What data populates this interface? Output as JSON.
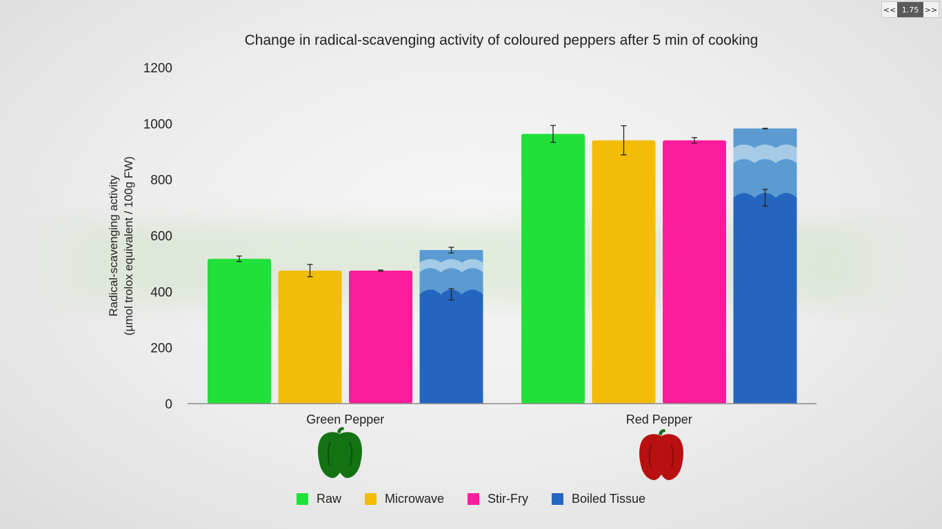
{
  "player": {
    "prev_label": "<<",
    "speed": "1.75",
    "next_label": ">>"
  },
  "colors": {
    "Raw": "#22e03a",
    "Microwave": "#f2bc07",
    "Stir-Fry": "#fc1c9c",
    "Boiled Tissue": "#2466bf",
    "Boiled Tissue wave light": "#a5cbe6",
    "Boiled Tissue wave mid": "#5b9bd2",
    "green pepper icon": "#137313",
    "red pepper icon": "#b80f0f"
  },
  "chart_data": {
    "type": "bar",
    "title": "Change in radical-scavenging activity of coloured peppers after 5 min of cooking",
    "ylabel": "Radical-scavenging activity",
    "ylabel_units": "(µmol trolox equivalent / 100g FW)",
    "xlabel": "",
    "ylim": [
      0,
      1200
    ],
    "yticks": [
      0,
      200,
      400,
      600,
      800,
      1000,
      1200
    ],
    "grid": false,
    "legend_position": "bottom",
    "categories": [
      "Green Pepper",
      "Red Pepper"
    ],
    "series": [
      {
        "name": "Raw",
        "values": [
          517,
          963
        ],
        "errors": [
          10,
          30
        ]
      },
      {
        "name": "Microwave",
        "values": [
          475,
          940
        ],
        "errors": [
          22,
          52
        ]
      },
      {
        "name": "Stir-Fry",
        "values": [
          475,
          940
        ],
        "errors": [
          2,
          10
        ]
      },
      {
        "name": "Boiled Tissue",
        "values": [
          548,
          982
        ],
        "errors": [
          10,
          1
        ],
        "tissue_values": [
          390,
          735
        ],
        "tissue_errors": [
          20,
          30
        ]
      }
    ],
    "pepper_icons": [
      "green pepper",
      "red pepper"
    ]
  }
}
